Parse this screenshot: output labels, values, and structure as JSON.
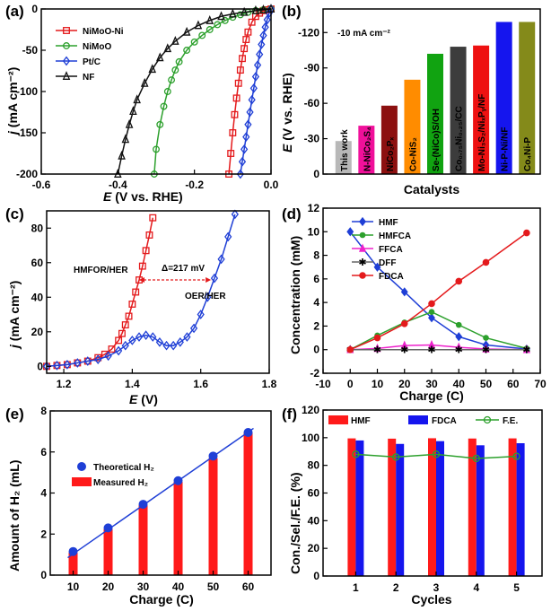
{
  "chart_data": [
    {
      "type": "line",
      "panel": "(a)",
      "xlabel_italic": "E",
      "xlabel_rest": " (V vs. RHE)",
      "ylabel_italic": "j",
      "ylabel_rest": " (mA cm⁻²)",
      "xlim": [
        -0.6,
        0.0
      ],
      "ylim": [
        -200,
        0
      ],
      "xticks": [
        -0.6,
        -0.4,
        -0.2,
        0.0
      ],
      "yticks": [
        -200,
        -150,
        -100,
        -50,
        0
      ],
      "tick_labels_x": [
        "-0.6",
        "-0.4",
        "-0.2",
        "0.0"
      ],
      "tick_labels_y": [
        "-200",
        "-150",
        "-100",
        "-50",
        "0"
      ],
      "series": [
        {
          "name": "NiMoO-Ni",
          "color": "#e41a1c",
          "marker": "square",
          "x": [
            -0.11,
            -0.105,
            -0.1,
            -0.095,
            -0.09,
            -0.085,
            -0.08,
            -0.075,
            -0.07,
            -0.065,
            -0.06,
            -0.05,
            -0.04,
            -0.03,
            -0.02,
            -0.01,
            0.0
          ],
          "y": [
            -200,
            -175,
            -150,
            -128,
            -108,
            -90,
            -74,
            -60,
            -48,
            -37,
            -28,
            -16,
            -9,
            -5,
            -2,
            -1,
            0
          ]
        },
        {
          "name": "NiMoO",
          "color": "#2ca02c",
          "marker": "circle",
          "x": [
            -0.305,
            -0.3,
            -0.29,
            -0.28,
            -0.27,
            -0.26,
            -0.25,
            -0.24,
            -0.22,
            -0.2,
            -0.18,
            -0.16,
            -0.14,
            -0.12,
            -0.1,
            -0.08,
            -0.06,
            -0.04,
            -0.02,
            0.0
          ],
          "y": [
            -200,
            -170,
            -140,
            -118,
            -100,
            -86,
            -74,
            -64,
            -50,
            -40,
            -32,
            -25,
            -19,
            -14,
            -10,
            -7,
            -4,
            -2,
            -1,
            0
          ]
        },
        {
          "name": "Pt/C",
          "color": "#1f3fd6",
          "marker": "diamond",
          "x": [
            -0.08,
            -0.075,
            -0.07,
            -0.065,
            -0.06,
            -0.055,
            -0.05,
            -0.045,
            -0.04,
            -0.035,
            -0.03,
            -0.025,
            -0.02,
            -0.015,
            -0.01,
            -0.005,
            0.0
          ],
          "y": [
            -200,
            -185,
            -170,
            -155,
            -140,
            -125,
            -110,
            -96,
            -82,
            -68,
            -55,
            -43,
            -32,
            -22,
            -13,
            -5,
            0
          ]
        },
        {
          "name": "NF",
          "color": "#111111",
          "marker": "triangle",
          "x": [
            -0.4,
            -0.39,
            -0.38,
            -0.37,
            -0.36,
            -0.35,
            -0.33,
            -0.31,
            -0.29,
            -0.27,
            -0.25,
            -0.22,
            -0.19,
            -0.16,
            -0.13,
            -0.1,
            -0.07,
            -0.04,
            -0.02,
            0.0
          ],
          "y": [
            -200,
            -178,
            -158,
            -140,
            -124,
            -110,
            -90,
            -73,
            -59,
            -48,
            -39,
            -28,
            -20,
            -14,
            -9,
            -6,
            -4,
            -2,
            -1,
            0
          ]
        }
      ]
    },
    {
      "type": "bar",
      "panel": "(b)",
      "annotation": "-10 mA cm⁻²",
      "xlabel": "Catalysts",
      "ylabel_italic": "E",
      "ylabel_rest": " (V vs. RHE)",
      "ylim": [
        0,
        -140
      ],
      "yticks": [
        0,
        -30,
        -60,
        -90,
        -120
      ],
      "tick_labels_y": [
        "0",
        "-30",
        "-60",
        "-90",
        "-120"
      ],
      "categories": [
        "This work",
        "N-NiCo₂S₄",
        "NiCo₂Pₓ",
        "Co-NiS₂",
        "Se-(NiCo)S/OH",
        "Co₀.₇₅Ni₀.₂₅/CC",
        "Mo-Ni₃S₂/NiₓPᵧ/NF",
        "Ni-P-Ni/NF",
        "Co₄Ni-P"
      ],
      "values": [
        -28,
        -41,
        -58,
        -80,
        -102,
        -108,
        -109,
        -129,
        -129
      ],
      "colors": [
        "#b8b8b8",
        "#f0109a",
        "#8c1010",
        "#ff8c00",
        "#11a311",
        "#3c3c3c",
        "#ee1111",
        "#1515ee",
        "#848a1a"
      ]
    },
    {
      "type": "line",
      "panel": "(c)",
      "xlabel_italic": "E",
      "xlabel_rest": " (V)",
      "ylabel_italic": "j",
      "ylabel_rest": " (mA cm⁻²)",
      "xlim": [
        1.15,
        1.8
      ],
      "ylim": [
        -4,
        90
      ],
      "xticks": [
        1.2,
        1.4,
        1.6,
        1.8
      ],
      "yticks": [
        0,
        20,
        40,
        60,
        80
      ],
      "tick_labels_x": [
        "1.2",
        "1.4",
        "1.6",
        "1.8"
      ],
      "tick_labels_y": [
        "0",
        "20",
        "40",
        "60",
        "80"
      ],
      "annotations": [
        "HMFOR/HER",
        "Δ=217 mV",
        "OER/HER"
      ],
      "series": [
        {
          "name": "HMFOR/HER",
          "color": "#e41a1c",
          "marker": "square",
          "x": [
            1.15,
            1.18,
            1.21,
            1.24,
            1.27,
            1.3,
            1.32,
            1.34,
            1.36,
            1.37,
            1.38,
            1.39,
            1.4,
            1.41,
            1.42,
            1.43,
            1.44,
            1.45,
            1.46
          ],
          "y": [
            0,
            0.5,
            1,
            2,
            3,
            5,
            7,
            10,
            15,
            19,
            24,
            29,
            36,
            43,
            50,
            58,
            67,
            76,
            86
          ]
        },
        {
          "name": "OER/HER",
          "color": "#1f3fd6",
          "marker": "diamond",
          "x": [
            1.15,
            1.18,
            1.21,
            1.24,
            1.27,
            1.3,
            1.33,
            1.36,
            1.38,
            1.4,
            1.42,
            1.44,
            1.46,
            1.48,
            1.5,
            1.52,
            1.54,
            1.56,
            1.58,
            1.6,
            1.62,
            1.64,
            1.66,
            1.68,
            1.7
          ],
          "y": [
            0,
            0.5,
            1,
            2,
            3,
            4,
            6,
            9,
            12,
            15,
            17,
            18,
            17,
            14,
            12,
            12,
            14,
            17,
            22,
            30,
            40,
            51,
            62,
            75,
            88
          ]
        }
      ]
    },
    {
      "type": "line",
      "panel": "(d)",
      "xlabel": "Charge (C)",
      "ylabel": "Concentration (mM)",
      "xlim": [
        -10,
        70
      ],
      "ylim": [
        -2,
        12
      ],
      "xticks": [
        -10,
        0,
        10,
        20,
        30,
        40,
        50,
        60,
        70
      ],
      "yticks": [
        -2,
        0,
        2,
        4,
        6,
        8,
        10,
        12
      ],
      "tick_labels_x": [
        "-10",
        "0",
        "10",
        "20",
        "30",
        "40",
        "50",
        "60",
        "70"
      ],
      "tick_labels_y": [
        "-2",
        "0",
        "2",
        "4",
        "6",
        "8",
        "10",
        "12"
      ],
      "x": [
        0,
        10,
        20,
        30,
        40,
        50,
        65
      ],
      "series": [
        {
          "name": "HMF",
          "color": "#1f3fd6",
          "marker": "diamond",
          "y": [
            10.0,
            7.0,
            4.9,
            2.7,
            1.1,
            0.4,
            0.05
          ]
        },
        {
          "name": "HMFCA",
          "color": "#2ca02c",
          "marker": "square",
          "y": [
            0,
            1.2,
            2.3,
            3.2,
            2.1,
            1.0,
            0.1
          ]
        },
        {
          "name": "FFCA",
          "color": "#ee22cc",
          "marker": "triangle",
          "y": [
            0,
            0.1,
            0.35,
            0.4,
            0.2,
            0.05,
            0
          ]
        },
        {
          "name": "DFF",
          "color": "#666666",
          "marker": "star",
          "y": [
            0,
            0,
            0,
            0,
            0,
            0,
            0
          ]
        },
        {
          "name": "FDCA",
          "color": "#e41a1c",
          "marker": "circle",
          "y": [
            0,
            1.0,
            2.2,
            3.9,
            5.8,
            7.4,
            9.9
          ]
        }
      ]
    },
    {
      "type": "bar",
      "panel": "(e)",
      "xlabel": "Charge (C)",
      "ylabel": "Amount of H₂ (mL)",
      "ylim": [
        0,
        8
      ],
      "yticks": [
        0,
        2,
        4,
        6,
        8
      ],
      "tick_labels_y": [
        "0",
        "2",
        "4",
        "6",
        "8"
      ],
      "categories": [
        "10",
        "20",
        "30",
        "40",
        "50",
        "60"
      ],
      "series": [
        {
          "name": "Measured H₂",
          "color": "#ff1a1a",
          "values": [
            1.1,
            2.25,
            3.4,
            4.55,
            5.7,
            6.95
          ]
        },
        {
          "name": "Theoretical H₂",
          "color": "#1f3fd6",
          "marker": "circle",
          "values": [
            1.15,
            2.3,
            3.45,
            4.6,
            5.8,
            6.95
          ]
        }
      ]
    },
    {
      "type": "bar",
      "panel": "(f)",
      "xlabel": "Cycles",
      "ylabel": "Con./Sel./F.E. (%)",
      "ylim": [
        0,
        120
      ],
      "yticks": [
        0,
        20,
        40,
        60,
        80,
        100,
        120
      ],
      "tick_labels_y": [
        "0",
        "20",
        "40",
        "60",
        "80",
        "100",
        "120"
      ],
      "categories": [
        "1",
        "2",
        "3",
        "4",
        "5"
      ],
      "series": [
        {
          "name": "HMF",
          "color": "#ff1a1a",
          "values": [
            99.5,
            99.3,
            99.6,
            99.4,
            99.5
          ]
        },
        {
          "name": "FDCA",
          "color": "#1515ee",
          "values": [
            98,
            95.5,
            97.5,
            94.5,
            96
          ]
        },
        {
          "name": "F.E.",
          "color": "#2ca02c",
          "type": "line",
          "values": [
            88,
            86,
            88,
            85,
            86.5
          ]
        }
      ]
    }
  ]
}
